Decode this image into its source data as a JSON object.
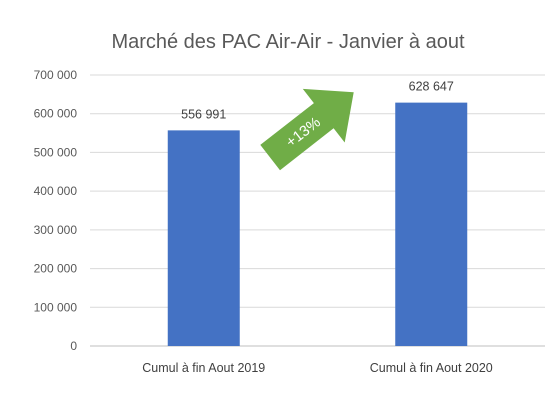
{
  "chart_data": {
    "type": "bar",
    "title": "Marché des PAC Air-Air - Janvier à aout",
    "categories": [
      "Cumul à fin Aout 2019",
      "Cumul à fin Aout 2020"
    ],
    "values": [
      556991,
      628647
    ],
    "value_labels": [
      "556 991",
      "628 647"
    ],
    "ylim": [
      0,
      700000
    ],
    "yticks": [
      0,
      100000,
      200000,
      300000,
      400000,
      500000,
      600000,
      700000
    ],
    "ytick_labels": [
      "0",
      "100 000",
      "200 000",
      "300 000",
      "400 000",
      "500 000",
      "600 000",
      "700 000"
    ],
    "grid": true,
    "bar_color": "#4472C4",
    "annotation": {
      "text": "+13%",
      "shape": "arrow-up-right",
      "color": "#70AD47"
    }
  }
}
